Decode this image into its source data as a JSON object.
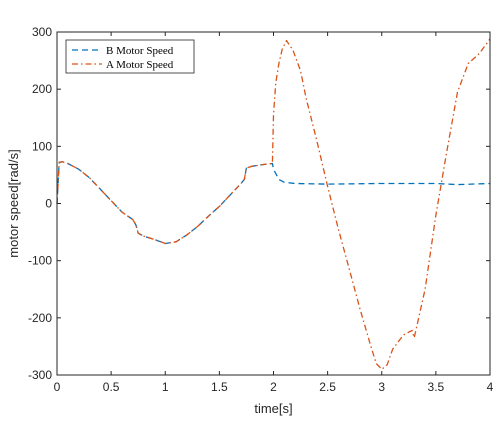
{
  "chart_data": {
    "type": "line",
    "title": "",
    "xlabel": "time[s]",
    "ylabel": "motor speed[rad/s]",
    "xlim": [
      0,
      4
    ],
    "ylim": [
      -300,
      300
    ],
    "xticks": [
      0,
      0.5,
      1,
      1.5,
      2,
      2.5,
      3,
      3.5,
      4
    ],
    "xtick_labels": [
      "0",
      "0.5",
      "1",
      "1.5",
      "2",
      "2.5",
      "3",
      "3.5",
      "4"
    ],
    "yticks": [
      300,
      200,
      100,
      0,
      -100,
      -200,
      -300
    ],
    "ytick_labels": [
      "300",
      "200",
      "100",
      "0",
      "-100",
      "-200",
      "-300"
    ],
    "grid": false,
    "legend_position": "top-left",
    "series": [
      {
        "name": "B Motor Speed",
        "color": "#0072BD",
        "line_style": "dashed",
        "x": [
          0,
          0.02,
          0.05,
          0.1,
          0.2,
          0.3,
          0.4,
          0.5,
          0.6,
          0.7,
          0.73,
          0.75,
          0.8,
          0.9,
          1.0,
          1.1,
          1.2,
          1.3,
          1.4,
          1.5,
          1.6,
          1.7,
          1.73,
          1.75,
          1.8,
          1.9,
          1.99,
          2.0,
          2.05,
          2.1,
          2.2,
          2.5,
          3.0,
          3.5,
          3.7,
          4.0
        ],
        "y": [
          0,
          72,
          73,
          70,
          60,
          45,
          25,
          5,
          -15,
          -28,
          -38,
          -52,
          -57,
          -63,
          -70,
          -67,
          -55,
          -40,
          -22,
          -5,
          15,
          35,
          42,
          62,
          65,
          68,
          70,
          60,
          42,
          37,
          35,
          34,
          35,
          35,
          33,
          35
        ]
      },
      {
        "name": "A Motor Speed",
        "color": "#D95319",
        "line_style": "dashdot",
        "x": [
          0,
          0.02,
          0.05,
          0.1,
          0.2,
          0.3,
          0.4,
          0.5,
          0.6,
          0.7,
          0.73,
          0.75,
          0.8,
          0.9,
          1.0,
          1.1,
          1.2,
          1.3,
          1.4,
          1.5,
          1.6,
          1.7,
          1.73,
          1.75,
          1.8,
          1.9,
          1.99,
          2.0,
          2.02,
          2.05,
          2.08,
          2.12,
          2.18,
          2.25,
          2.3,
          2.4,
          2.5,
          2.6,
          2.7,
          2.8,
          2.9,
          2.95,
          3.0,
          3.05,
          3.1,
          3.2,
          3.28,
          3.3,
          3.4,
          3.5,
          3.6,
          3.7,
          3.8,
          3.9,
          4.0
        ],
        "y": [
          0,
          72,
          73,
          70,
          60,
          45,
          25,
          5,
          -15,
          -28,
          -38,
          -52,
          -57,
          -63,
          -70,
          -67,
          -55,
          -40,
          -22,
          -5,
          15,
          35,
          42,
          62,
          65,
          68,
          70,
          155,
          210,
          245,
          270,
          285,
          268,
          232,
          185,
          110,
          30,
          -45,
          -115,
          -185,
          -250,
          -280,
          -290,
          -282,
          -255,
          -230,
          -222,
          -235,
          -150,
          -20,
          90,
          195,
          245,
          262,
          288
        ]
      }
    ]
  }
}
